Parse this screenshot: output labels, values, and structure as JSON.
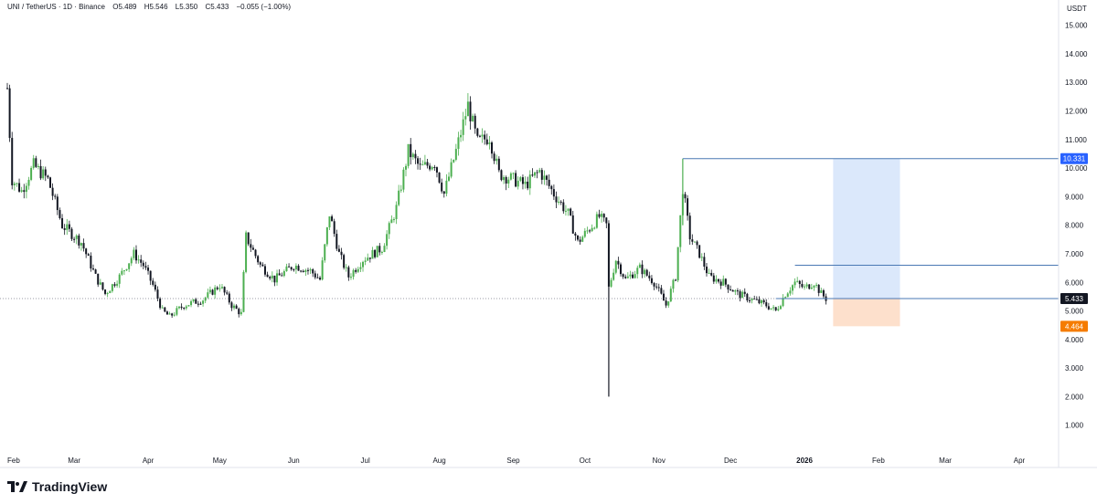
{
  "header": {
    "symbol": "UNI / TetherUS · 1D · Binance",
    "open": "O5.489",
    "high": "H5.546",
    "low": "L5.350",
    "close": "C5.433",
    "change": "−0.055 (−1.00%)"
  },
  "axis": {
    "currency": "USDT"
  },
  "brand": {
    "name": "TradingView"
  },
  "colors": {
    "up": "#26a69a",
    "down": "#131722",
    "up_candle": "#4caf50",
    "target_zone": "#dbe8fb",
    "stop_zone": "#fde0cc",
    "target_tag": "#2962ff",
    "stop_tag": "#f57c00",
    "price_tag": "#131722",
    "line": "#4a78b4"
  },
  "chart_data": {
    "type": "candlestick",
    "y_axis": {
      "min": 0,
      "max": 15.5,
      "ticks": [
        "1.000",
        "2.000",
        "3.000",
        "4.000",
        "5.000",
        "6.000",
        "7.000",
        "8.000",
        "9.000",
        "10.000",
        "11.000",
        "12.000",
        "13.000",
        "14.000",
        "15.000"
      ]
    },
    "x_axis": {
      "labels": [
        "Feb",
        "Mar",
        "Apr",
        "May",
        "Jun",
        "Jul",
        "Aug",
        "Sep",
        "Oct",
        "Nov",
        "Dec",
        "2026",
        "Feb",
        "Mar",
        "Apr"
      ],
      "bold_labels": [
        "2026"
      ]
    },
    "price_path": [
      [
        "2025-02-01",
        12.8
      ],
      [
        "2025-02-03",
        9.6
      ],
      [
        "2025-02-07",
        9.2
      ],
      [
        "2025-02-12",
        10.1
      ],
      [
        "2025-02-18",
        9.6
      ],
      [
        "2025-02-24",
        8.0
      ],
      [
        "2025-03-04",
        7.4
      ],
      [
        "2025-03-10",
        6.2
      ],
      [
        "2025-03-14",
        5.6
      ],
      [
        "2025-03-20",
        6.2
      ],
      [
        "2025-03-26",
        7.0
      ],
      [
        "2025-03-30",
        6.6
      ],
      [
        "2025-04-03",
        5.9
      ],
      [
        "2025-04-07",
        5.0
      ],
      [
        "2025-04-10",
        4.8
      ],
      [
        "2025-04-16",
        5.2
      ],
      [
        "2025-04-24",
        5.4
      ],
      [
        "2025-05-01",
        5.9
      ],
      [
        "2025-05-06",
        5.2
      ],
      [
        "2025-05-10",
        4.9
      ],
      [
        "2025-05-12",
        7.6
      ],
      [
        "2025-05-18",
        6.6
      ],
      [
        "2025-05-24",
        6.1
      ],
      [
        "2025-06-01",
        6.6
      ],
      [
        "2025-06-08",
        6.4
      ],
      [
        "2025-06-12",
        6.1
      ],
      [
        "2025-06-16",
        8.4
      ],
      [
        "2025-06-20",
        7.0
      ],
      [
        "2025-06-24",
        6.2
      ],
      [
        "2025-06-30",
        6.8
      ],
      [
        "2025-07-08",
        7.2
      ],
      [
        "2025-07-14",
        8.6
      ],
      [
        "2025-07-19",
        10.6
      ],
      [
        "2025-07-24",
        10.0
      ],
      [
        "2025-07-30",
        10.2
      ],
      [
        "2025-08-03",
        9.1
      ],
      [
        "2025-08-08",
        10.6
      ],
      [
        "2025-08-13",
        12.2
      ],
      [
        "2025-08-17",
        10.9
      ],
      [
        "2025-08-22",
        11.1
      ],
      [
        "2025-08-26",
        9.8
      ],
      [
        "2025-09-01",
        9.6
      ],
      [
        "2025-09-06",
        9.4
      ],
      [
        "2025-09-12",
        9.9
      ],
      [
        "2025-09-18",
        9.1
      ],
      [
        "2025-09-24",
        8.4
      ],
      [
        "2025-09-28",
        7.4
      ],
      [
        "2025-10-02",
        7.8
      ],
      [
        "2025-10-07",
        8.3
      ],
      [
        "2025-10-10",
        8.0
      ],
      [
        "2025-10-11",
        5.8
      ],
      [
        "2025-10-14",
        6.8
      ],
      [
        "2025-10-18",
        6.1
      ],
      [
        "2025-10-24",
        6.5
      ],
      [
        "2025-10-30",
        6.0
      ],
      [
        "2025-11-04",
        5.2
      ],
      [
        "2025-11-08",
        6.2
      ],
      [
        "2025-11-11",
        9.3
      ],
      [
        "2025-11-14",
        7.6
      ],
      [
        "2025-11-18",
        7.0
      ],
      [
        "2025-11-22",
        6.2
      ],
      [
        "2025-11-28",
        6.0
      ],
      [
        "2025-12-04",
        5.6
      ],
      [
        "2025-12-10",
        5.4
      ],
      [
        "2025-12-16",
        5.2
      ],
      [
        "2025-12-20",
        5.0
      ],
      [
        "2025-12-24",
        5.6
      ],
      [
        "2025-12-28",
        6.0
      ],
      [
        "2026-01-01",
        5.8
      ],
      [
        "2026-01-05",
        6.0
      ],
      [
        "2026-01-08",
        5.6
      ],
      [
        "2026-01-10",
        5.433
      ]
    ],
    "wicks": [
      {
        "date": "2025-10-11",
        "low": 2.0
      },
      {
        "date": "2025-11-11",
        "high": 10.331
      }
    ],
    "levels": {
      "current_price": "5.433",
      "target_price": "10.331",
      "stop_price": "4.464",
      "resistance": 6.6,
      "entry": 5.433,
      "target": 10.331,
      "stop": 4.464
    },
    "position_tool": {
      "start": "2026-01-13",
      "end": "2026-02-10",
      "line_start": "2025-11-11",
      "resistance_start": "2025-12-28"
    },
    "grid": false
  }
}
